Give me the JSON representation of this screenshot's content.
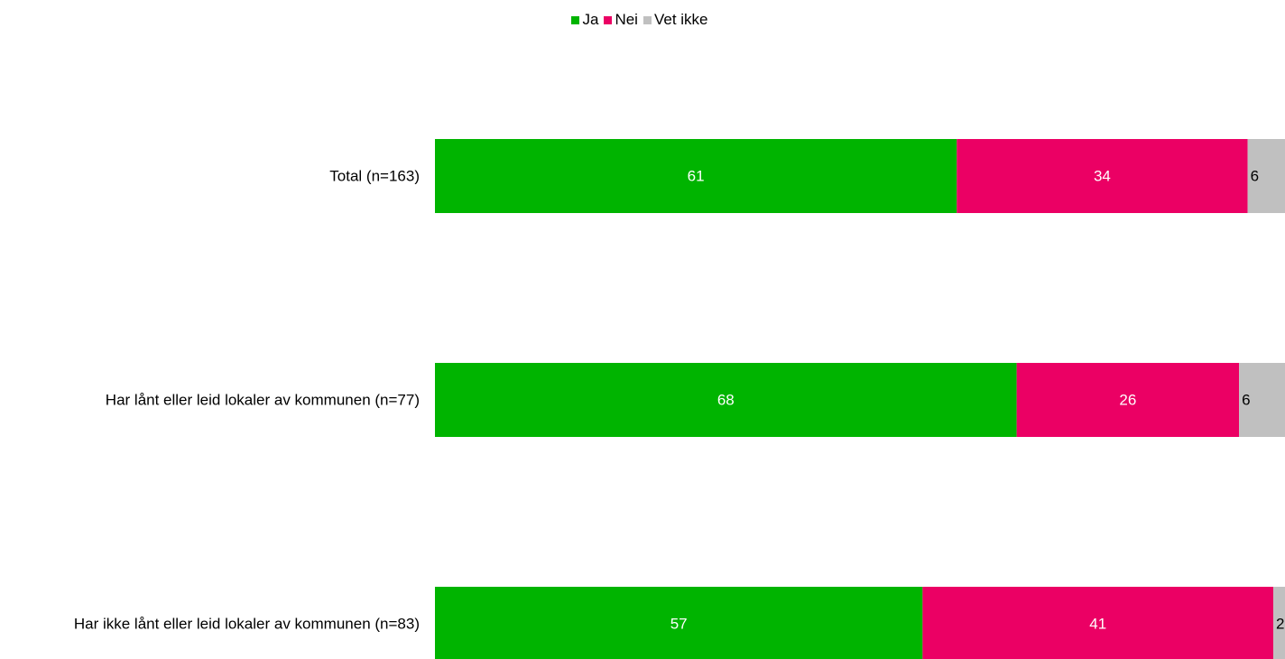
{
  "chart_data": {
    "type": "bar",
    "orientation": "horizontal",
    "stacked": true,
    "categories": [
      "Total (n=163)",
      "Har lånt eller leid lokaler av kommunen (n=77)",
      "Har ikke lånt eller leid lokaler av kommunen (n=83)"
    ],
    "series": [
      {
        "name": "Ja",
        "color": "#00b400",
        "label_color": "#ffffff",
        "values": [
          61,
          68,
          57
        ]
      },
      {
        "name": "Nei",
        "color": "#eb0064",
        "label_color": "#ffffff",
        "values": [
          34,
          26,
          41
        ]
      },
      {
        "name": "Vet ikke",
        "color": "#c0c0c0",
        "label_color": "#000000",
        "values": [
          6,
          6,
          2
        ]
      }
    ],
    "xlim": [
      0,
      100
    ],
    "grid": false,
    "legend_position": "top-center",
    "show_data_labels": true
  }
}
